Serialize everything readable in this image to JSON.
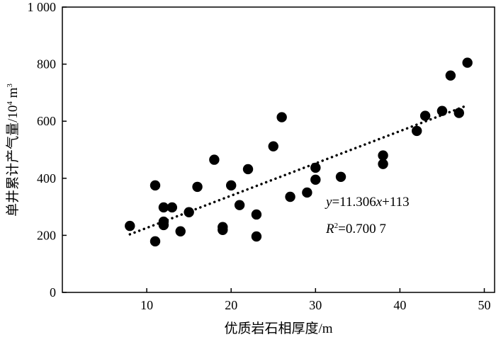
{
  "chart_data": {
    "type": "scatter",
    "title": "",
    "xlabel": "优质岩石相厚度/m",
    "ylabel": "单井累计产气量/10⁴ m³",
    "ylabel_main": "单井累计产气量/10",
    "ylabel_sup1": "4",
    "ylabel_unit": " m",
    "ylabel_sup2": "3",
    "xlim": [
      0,
      50
    ],
    "ylim": [
      0,
      1000
    ],
    "xticks": [
      10,
      20,
      30,
      40,
      50
    ],
    "xtick_labels": [
      "10",
      "20",
      "30",
      "40",
      "50"
    ],
    "yticks": [
      0,
      200,
      400,
      600,
      800,
      1000
    ],
    "ytick_labels": [
      "0",
      "200",
      "400",
      "600",
      "800",
      "1 000"
    ],
    "grid": false,
    "points": [
      [
        8,
        233
      ],
      [
        11,
        375
      ],
      [
        11,
        179
      ],
      [
        12,
        298
      ],
      [
        12,
        248
      ],
      [
        12,
        236
      ],
      [
        13,
        298
      ],
      [
        14,
        214
      ],
      [
        15,
        281
      ],
      [
        16,
        370
      ],
      [
        18,
        465
      ],
      [
        19,
        229
      ],
      [
        19,
        219
      ],
      [
        20,
        375
      ],
      [
        21,
        306
      ],
      [
        22,
        432
      ],
      [
        23,
        273
      ],
      [
        23,
        196
      ],
      [
        25,
        512
      ],
      [
        26,
        614
      ],
      [
        27,
        335
      ],
      [
        29,
        350
      ],
      [
        30,
        437
      ],
      [
        30,
        395
      ],
      [
        33,
        405
      ],
      [
        38,
        480
      ],
      [
        38,
        450
      ],
      [
        42,
        566
      ],
      [
        43,
        619
      ],
      [
        45,
        636
      ],
      [
        46,
        760
      ],
      [
        47,
        629
      ],
      [
        48,
        805
      ]
    ],
    "trendline": {
      "slope": 11.306,
      "intercept": 113,
      "x_range": [
        8,
        48
      ]
    },
    "annotation": {
      "equation": {
        "y": "y",
        "eq": "=11.306",
        "x": "x",
        "rest": "+113"
      },
      "r2": {
        "r": "R",
        "sup": "2",
        "rest": "=0.700 7"
      }
    },
    "colors": {
      "marker": "#000000",
      "axis": "#000000"
    }
  }
}
